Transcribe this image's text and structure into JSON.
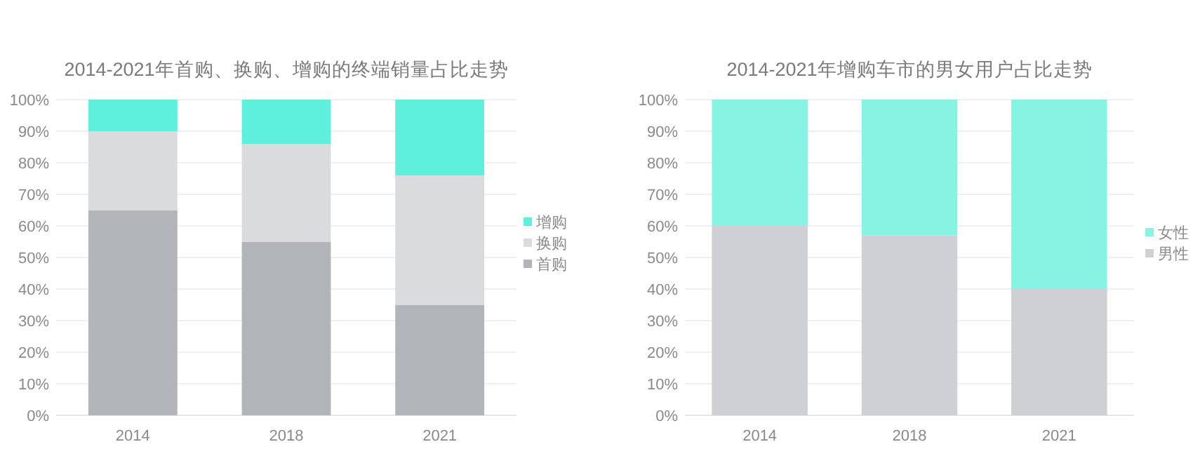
{
  "chart_data": [
    {
      "type": "bar",
      "title": "2014-2021年首购、换购、增购的终端销量占比走势",
      "categories": [
        "2014",
        "2018",
        "2021"
      ],
      "stacked": true,
      "legend": "right",
      "grid": "y",
      "ylim": [
        0,
        100
      ],
      "yticks": [
        {
          "value": 0,
          "label": "0%"
        },
        {
          "value": 10,
          "label": "10%"
        },
        {
          "value": 20,
          "label": "20%"
        },
        {
          "value": 30,
          "label": "30%"
        },
        {
          "value": 40,
          "label": "40%"
        },
        {
          "value": 50,
          "label": "50%"
        },
        {
          "value": 60,
          "label": "60%"
        },
        {
          "value": 70,
          "label": "70%"
        },
        {
          "value": 80,
          "label": "80%"
        },
        {
          "value": 90,
          "label": "90%"
        },
        {
          "value": 100,
          "label": "100%"
        }
      ],
      "series": [
        {
          "name": "首购",
          "color": "#b1b4b8",
          "values": [
            65,
            55,
            35
          ]
        },
        {
          "name": "换购",
          "color": "#d9dbdd",
          "values": [
            25,
            31,
            41
          ]
        },
        {
          "name": "增购",
          "color": "#5ef0dc",
          "values": [
            10,
            14,
            24
          ]
        }
      ]
    },
    {
      "type": "bar",
      "title": "2014-2021年增购车市的男女用户占比走势",
      "categories": [
        "2014",
        "2018",
        "2021"
      ],
      "stacked": true,
      "legend": "right",
      "grid": "y",
      "ylim": [
        0,
        100
      ],
      "yticks": [
        {
          "value": 0,
          "label": "0%"
        },
        {
          "value": 10,
          "label": "10%"
        },
        {
          "value": 20,
          "label": "20%"
        },
        {
          "value": 30,
          "label": "30%"
        },
        {
          "value": 40,
          "label": "40%"
        },
        {
          "value": 50,
          "label": "50%"
        },
        {
          "value": 60,
          "label": "60%"
        },
        {
          "value": 70,
          "label": "70%"
        },
        {
          "value": 80,
          "label": "80%"
        },
        {
          "value": 90,
          "label": "90%"
        },
        {
          "value": 100,
          "label": "100%"
        }
      ],
      "series": [
        {
          "name": "男性",
          "color": "#cfd0d3",
          "values": [
            60,
            57,
            40
          ]
        },
        {
          "name": "女性",
          "color": "#86f3e3",
          "values": [
            40,
            43,
            60
          ]
        }
      ]
    }
  ]
}
